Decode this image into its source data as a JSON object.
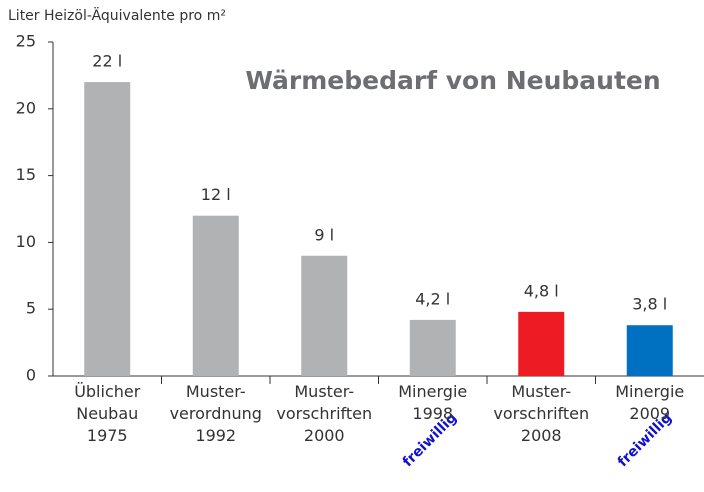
{
  "chart_data": {
    "type": "bar",
    "title": "Wärmebedarf von Neubauten",
    "y_label": "Liter Heizöl-Äquivalente pro m²",
    "categories": [
      [
        "Üblicher",
        "Neubau",
        "1975"
      ],
      [
        "Muster-",
        "verordnung",
        "1992"
      ],
      [
        "Muster-",
        "vorschriften",
        "2000"
      ],
      [
        "Minergie",
        "1998"
      ],
      [
        "Muster-",
        "vorschriften",
        "2008"
      ],
      [
        "Minergie",
        "2009"
      ]
    ],
    "values": [
      22,
      12,
      9,
      4.2,
      4.8,
      3.8
    ],
    "value_labels": [
      "22 l",
      "12 l",
      "9 l",
      "4,2 l",
      "4,8 l",
      "3,8 l"
    ],
    "colors": [
      "#b1b2b4",
      "#b1b2b4",
      "#b1b2b4",
      "#b1b2b4",
      "#ed1c24",
      "#0070c0"
    ],
    "annotations": [
      "freiwillig",
      "freiwillig"
    ],
    "ylim": [
      0,
      25
    ],
    "yticks": [
      0,
      5,
      10,
      15,
      20,
      25
    ],
    "grid": false
  }
}
